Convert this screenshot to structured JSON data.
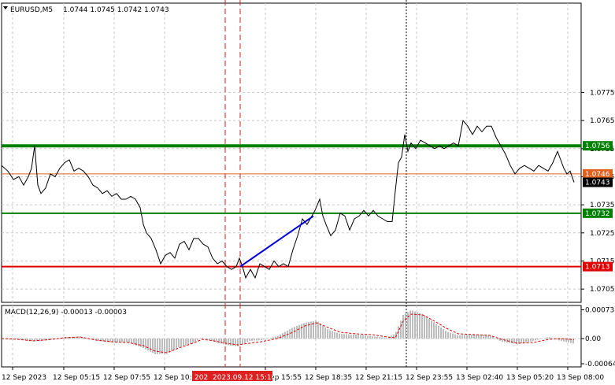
{
  "symbol": "EURUSD,M5",
  "ohlc_text": "1.0744 1.0745 1.0742 1.0743",
  "macd": {
    "title": "MACD(12,26,9) -0.00013 -0.00003",
    "ylim": [
      -0.00064,
      0.00073
    ],
    "ticks": [
      "0.00073",
      "0.00",
      "-0.00064"
    ],
    "points": [
      {
        "x": 0,
        "hist": -1e-05,
        "signal": 0.0
      },
      {
        "x": 20,
        "hist": -2e-05,
        "signal": -2e-05
      },
      {
        "x": 40,
        "hist": -7e-05,
        "signal": -6e-05
      },
      {
        "x": 60,
        "hist": -4e-05,
        "signal": -3e-05
      },
      {
        "x": 80,
        "hist": 4e-05,
        "signal": 2e-05
      },
      {
        "x": 100,
        "hist": 5e-05,
        "signal": 4e-05
      },
      {
        "x": 120,
        "hist": -5e-05,
        "signal": -4e-05
      },
      {
        "x": 140,
        "hist": -0.0001,
        "signal": -8e-05
      },
      {
        "x": 160,
        "hist": -9e-05,
        "signal": -0.0001
      },
      {
        "x": 180,
        "hist": -0.00024,
        "signal": -0.00018
      },
      {
        "x": 195,
        "hist": -0.0004,
        "signal": -0.00032
      },
      {
        "x": 210,
        "hist": -0.00038,
        "signal": -0.00036
      },
      {
        "x": 225,
        "hist": -0.00022,
        "signal": -0.00024
      },
      {
        "x": 240,
        "hist": -0.00014,
        "signal": -0.00014
      },
      {
        "x": 255,
        "hist": 2e-05,
        "signal": -2e-05
      },
      {
        "x": 270,
        "hist": -8e-05,
        "signal": -6e-05
      },
      {
        "x": 285,
        "hist": -0.00016,
        "signal": -0.00012
      },
      {
        "x": 300,
        "hist": -0.0002,
        "signal": -0.00016
      },
      {
        "x": 315,
        "hist": -6e-05,
        "signal": -0.00012
      },
      {
        "x": 330,
        "hist": -4e-05,
        "signal": -8e-05
      },
      {
        "x": 350,
        "hist": 6e-05,
        "signal": 0.0
      },
      {
        "x": 370,
        "hist": 0.00028,
        "signal": 0.00016
      },
      {
        "x": 385,
        "hist": 0.0004,
        "signal": 0.00032
      },
      {
        "x": 400,
        "hist": 0.00046,
        "signal": 0.0004
      },
      {
        "x": 415,
        "hist": 0.00022,
        "signal": 0.00028
      },
      {
        "x": 430,
        "hist": 0.00012,
        "signal": 0.00016
      },
      {
        "x": 450,
        "hist": 0.0001,
        "signal": 0.00012
      },
      {
        "x": 470,
        "hist": 6e-05,
        "signal": 0.0001
      },
      {
        "x": 490,
        "hist": 2e-05,
        "signal": 4e-05
      },
      {
        "x": 500,
        "hist": 0.00012,
        "signal": 2e-05
      },
      {
        "x": 510,
        "hist": 0.0006,
        "signal": 0.00044
      },
      {
        "x": 520,
        "hist": 0.00072,
        "signal": 0.00062
      },
      {
        "x": 535,
        "hist": 0.00062,
        "signal": 0.0006
      },
      {
        "x": 550,
        "hist": 0.0004,
        "signal": 0.00044
      },
      {
        "x": 565,
        "hist": 0.00018,
        "signal": 0.00026
      },
      {
        "x": 580,
        "hist": 8e-05,
        "signal": 0.00012
      },
      {
        "x": 600,
        "hist": 0.0001,
        "signal": 0.0001
      },
      {
        "x": 620,
        "hist": 8e-05,
        "signal": 8e-05
      },
      {
        "x": 635,
        "hist": -8e-05,
        "signal": -2e-05
      },
      {
        "x": 655,
        "hist": -0.00014,
        "signal": -0.00012
      },
      {
        "x": 675,
        "hist": -6e-05,
        "signal": -0.0001
      },
      {
        "x": 695,
        "hist": 4e-05,
        "signal": -2e-05
      },
      {
        "x": 710,
        "hist": -6e-05,
        "signal": 0.0
      },
      {
        "x": 727,
        "hist": -0.00013,
        "signal": -3e-05
      }
    ]
  },
  "chart_data": {
    "type": "line",
    "title": "EURUSD,M5",
    "ylim": [
      1.07,
      1.0782
    ],
    "yticks": [
      "1.0775",
      "1.0765",
      "1.0755",
      "1.0745",
      "1.0735",
      "1.0725",
      "1.0715",
      "1.0705"
    ],
    "xtick_labels": [
      "12 Sep 2023",
      "12 Sep 05:15",
      "12 Sep 07:55",
      "12 Sep 10:35",
      "12 Sep 15:55",
      "12 Sep 18:35",
      "12 Sep 21:15",
      "12 Sep 23:55",
      "13 Sep 02:40",
      "13 Sep 05:20",
      "13 Sep 08:00"
    ],
    "highlighted_time_label": "2023.09.12 15:10",
    "highlighted_time_partial": "202",
    "grid": true,
    "levels": [
      {
        "value": 1.0756,
        "label": "1.0756",
        "color": "#008000"
      },
      {
        "value": 1.0746,
        "label": "1.0746",
        "color": "#e06020"
      },
      {
        "value": 1.0743,
        "label": "1.0743",
        "color": "#000000"
      },
      {
        "value": 1.0732,
        "label": "1.0732",
        "color": "#008000"
      },
      {
        "value": 1.0713,
        "label": "1.0713",
        "color": "#e00000"
      }
    ],
    "trendline": {
      "from": {
        "x": 305,
        "y": 1.0713
      },
      "to": {
        "x": 398,
        "y": 1.0731
      },
      "color": "#0000dd"
    },
    "series": [
      {
        "color": "#000000",
        "points": [
          [
            0,
            1.0749
          ],
          [
            8,
            1.0747
          ],
          [
            15,
            1.0744
          ],
          [
            22,
            1.0745
          ],
          [
            28,
            1.0742
          ],
          [
            34,
            1.0745
          ],
          [
            38,
            1.0748
          ],
          [
            42,
            1.0756
          ],
          [
            46,
            1.0742
          ],
          [
            50,
            1.0739
          ],
          [
            56,
            1.0741
          ],
          [
            62,
            1.0746
          ],
          [
            68,
            1.0745
          ],
          [
            74,
            1.0748
          ],
          [
            80,
            1.075
          ],
          [
            86,
            1.0751
          ],
          [
            92,
            1.0747
          ],
          [
            98,
            1.0748
          ],
          [
            104,
            1.0747
          ],
          [
            110,
            1.0745
          ],
          [
            116,
            1.0742
          ],
          [
            122,
            1.0741
          ],
          [
            128,
            1.0739
          ],
          [
            134,
            1.074
          ],
          [
            140,
            1.0738
          ],
          [
            146,
            1.0739
          ],
          [
            152,
            1.0737
          ],
          [
            158,
            1.0737
          ],
          [
            164,
            1.0738
          ],
          [
            170,
            1.0737
          ],
          [
            176,
            1.0734
          ],
          [
            180,
            1.0728
          ],
          [
            184,
            1.0725
          ],
          [
            190,
            1.0723
          ],
          [
            196,
            1.0719
          ],
          [
            202,
            1.0714
          ],
          [
            208,
            1.0717
          ],
          [
            214,
            1.0718
          ],
          [
            220,
            1.0716
          ],
          [
            226,
            1.0721
          ],
          [
            232,
            1.0722
          ],
          [
            238,
            1.0719
          ],
          [
            244,
            1.0723
          ],
          [
            250,
            1.0723
          ],
          [
            256,
            1.0721
          ],
          [
            262,
            1.072
          ],
          [
            268,
            1.0716
          ],
          [
            274,
            1.0714
          ],
          [
            280,
            1.0715
          ],
          [
            286,
            1.0713
          ],
          [
            292,
            1.0712
          ],
          [
            298,
            1.0713
          ],
          [
            302,
            1.0716
          ],
          [
            306,
            1.0713
          ],
          [
            310,
            1.0709
          ],
          [
            316,
            1.0712
          ],
          [
            322,
            1.0709
          ],
          [
            328,
            1.0714
          ],
          [
            334,
            1.0713
          ],
          [
            340,
            1.0712
          ],
          [
            346,
            1.0715
          ],
          [
            352,
            1.0713
          ],
          [
            358,
            1.0714
          ],
          [
            364,
            1.0713
          ],
          [
            370,
            1.0719
          ],
          [
            376,
            1.0724
          ],
          [
            382,
            1.073
          ],
          [
            388,
            1.0728
          ],
          [
            394,
            1.0731
          ],
          [
            398,
            1.0733
          ],
          [
            404,
            1.0737
          ],
          [
            408,
            1.0731
          ],
          [
            412,
            1.0728
          ],
          [
            418,
            1.0724
          ],
          [
            424,
            1.0726
          ],
          [
            430,
            1.0732
          ],
          [
            436,
            1.0731
          ],
          [
            442,
            1.0726
          ],
          [
            448,
            1.073
          ],
          [
            454,
            1.0731
          ],
          [
            460,
            1.0733
          ],
          [
            466,
            1.0731
          ],
          [
            472,
            1.0733
          ],
          [
            478,
            1.0731
          ],
          [
            484,
            1.073
          ],
          [
            490,
            1.0729
          ],
          [
            496,
            1.0729
          ],
          [
            500,
            1.074
          ],
          [
            504,
            1.075
          ],
          [
            508,
            1.0752
          ],
          [
            512,
            1.076
          ],
          [
            516,
            1.0754
          ],
          [
            520,
            1.0757
          ],
          [
            526,
            1.0755
          ],
          [
            532,
            1.0758
          ],
          [
            538,
            1.0757
          ],
          [
            544,
            1.0756
          ],
          [
            550,
            1.0755
          ],
          [
            556,
            1.0756
          ],
          [
            562,
            1.0755
          ],
          [
            568,
            1.0756
          ],
          [
            574,
            1.0757
          ],
          [
            580,
            1.0756
          ],
          [
            586,
            1.0765
          ],
          [
            592,
            1.0763
          ],
          [
            598,
            1.076
          ],
          [
            604,
            1.0763
          ],
          [
            610,
            1.0761
          ],
          [
            616,
            1.0763
          ],
          [
            622,
            1.0763
          ],
          [
            628,
            1.0759
          ],
          [
            634,
            1.0756
          ],
          [
            640,
            1.0753
          ],
          [
            646,
            1.0749
          ],
          [
            652,
            1.0746
          ],
          [
            658,
            1.0748
          ],
          [
            664,
            1.0749
          ],
          [
            670,
            1.0748
          ],
          [
            676,
            1.0747
          ],
          [
            682,
            1.0749
          ],
          [
            688,
            1.0748
          ],
          [
            694,
            1.0747
          ],
          [
            700,
            1.075
          ],
          [
            706,
            1.0754
          ],
          [
            710,
            1.0751
          ],
          [
            714,
            1.0748
          ],
          [
            718,
            1.0746
          ],
          [
            722,
            1.0747
          ],
          [
            727,
            1.0743
          ]
        ]
      }
    ]
  }
}
